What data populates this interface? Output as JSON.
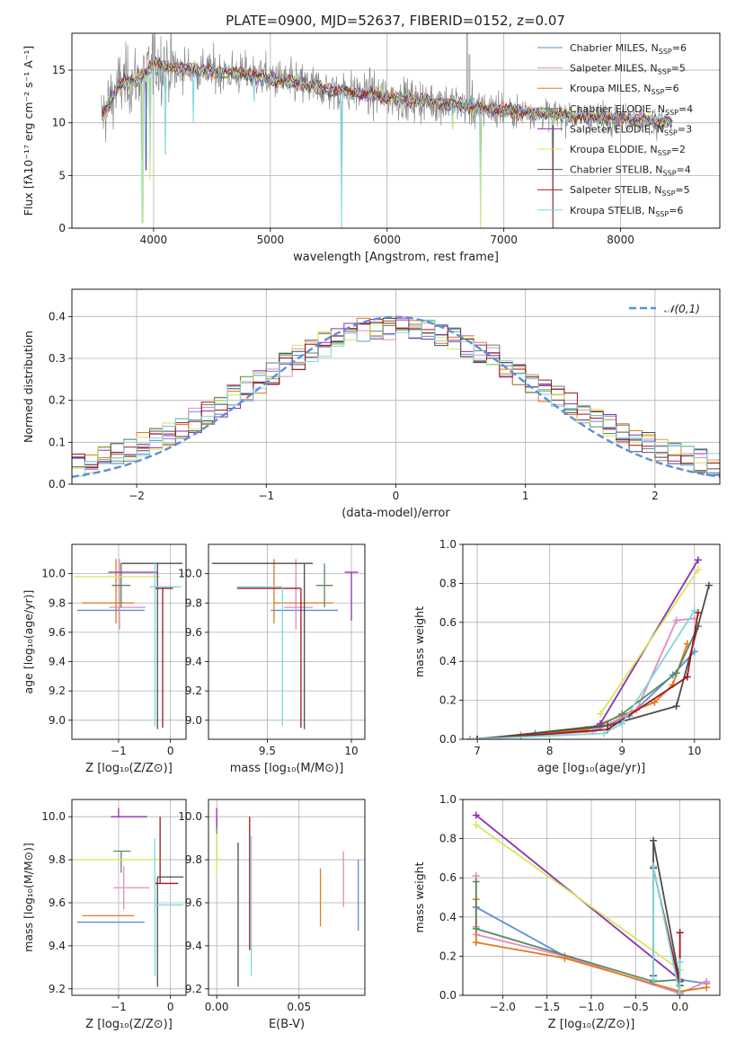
{
  "figure": {
    "title": "PLATE=0900, MJD=52637, FIBERID=0152, z=0.07"
  },
  "colors": {
    "Chabrier MILES": "#5b8fd9",
    "Salpeter MILES": "#e58ac0",
    "Kroupa MILES": "#e07b1e",
    "Chabrier ELODIE": "#5a8a60",
    "Salpeter ELODIE": "#8e2fb0",
    "Kroupa ELODIE": "#d4e85a",
    "Chabrier STELIB": "#4d4d4d",
    "Salpeter STELIB": "#a01818",
    "Kroupa STELIB": "#7fd6dd",
    "data": "#8a8a8a",
    "gauss": "#5b8fd9"
  },
  "chart_data": [
    {
      "id": "spectrum",
      "type": "line",
      "xlabel": "wavelength [Angstrom, rest frame]",
      "ylabel": "Flux [fλ10⁻¹⁷ erg cm⁻² s⁻¹ A⁻¹]",
      "xlim": [
        3300,
        8850
      ],
      "ylim": [
        0,
        18.5
      ],
      "xticks": [
        4000,
        5000,
        6000,
        7000,
        8000
      ],
      "yticks": [
        0,
        5,
        10,
        15
      ],
      "legend_position": "top-right",
      "legend": [
        "Chabrier MILES, NSSP=6",
        "Salpeter MILES, NSSP=5",
        "Kroupa MILES, NSSP=6",
        "Chabrier ELODIE, NSSP=4",
        "Salpeter ELODIE, NSSP=3",
        "Kroupa ELODIE, NSSP=2",
        "Chabrier STELIB, NSSP=4",
        "Salpeter STELIB, NSSP=5",
        "Kroupa STELIB, NSSP=6"
      ],
      "continuum": [
        [
          3550,
          10.5
        ],
        [
          3700,
          13.5
        ],
        [
          3900,
          14.5
        ],
        [
          4000,
          15.5
        ],
        [
          4200,
          15.2
        ],
        [
          4400,
          15.0
        ],
        [
          4600,
          14.8
        ],
        [
          4800,
          14.6
        ],
        [
          5000,
          14.2
        ],
        [
          5200,
          13.8
        ],
        [
          5400,
          13.4
        ],
        [
          5600,
          13.0
        ],
        [
          5800,
          12.8
        ],
        [
          6000,
          12.5
        ],
        [
          6200,
          12.2
        ],
        [
          6400,
          12.0
        ],
        [
          6600,
          11.7
        ],
        [
          6800,
          11.4
        ],
        [
          7000,
          11.2
        ],
        [
          7200,
          11.0
        ],
        [
          7400,
          10.8
        ],
        [
          7600,
          10.6
        ],
        [
          7800,
          10.5
        ],
        [
          8000,
          10.5
        ],
        [
          8200,
          10.3
        ],
        [
          8450,
          10.0
        ]
      ],
      "deep_lines": [
        [
          3905,
          0.5
        ],
        [
          3935,
          5.5
        ],
        [
          3970,
          4.5
        ],
        [
          4102,
          7
        ],
        [
          4340,
          10
        ],
        [
          4862,
          12
        ],
        [
          5610,
          0
        ],
        [
          6563,
          9.5
        ],
        [
          6800,
          0
        ],
        [
          7420,
          0
        ],
        [
          8500,
          9.0
        ]
      ],
      "spikes": [
        [
          4000,
          18.3
        ],
        [
          4090,
          17.2
        ],
        [
          6685,
          18.5
        ],
        [
          6705,
          16.5
        ]
      ]
    },
    {
      "id": "residuals",
      "type": "histogram",
      "xlabel": "(data-model)/error",
      "ylabel": "Normed distribution",
      "xlim": [
        -2.5,
        2.5
      ],
      "ylim": [
        0,
        0.465
      ],
      "xticks": [
        -2,
        -1,
        0,
        1,
        2
      ],
      "yticks": [
        0.0,
        0.1,
        0.2,
        0.3,
        0.4
      ],
      "legend_position": "top-right",
      "legend": [
        "𝒩(0,1)"
      ],
      "bins": 50,
      "gauss": {
        "mu": 0,
        "sigma": 1
      }
    },
    {
      "id": "age-vs-Z",
      "type": "errorbar",
      "xlabel": "Z [log₁₀(Z/Z⊙)]",
      "ylabel": "age  [log₁₀(age/yr)]",
      "xlim": [
        -1.9,
        0.3
      ],
      "ylim": [
        8.87,
        10.2
      ],
      "xticks": [
        -1,
        0
      ],
      "yticks": [
        9.0,
        9.2,
        9.4,
        9.6,
        9.8,
        10.0
      ],
      "points": [
        {
          "s": "Chabrier MILES",
          "x": -1.05,
          "y": 9.75,
          "xl": 0.75,
          "xh": 0.55,
          "yl": 0.0,
          "yh": 0.0
        },
        {
          "s": "Salpeter MILES",
          "x": -0.98,
          "y": 9.77,
          "xl": 0.2,
          "xh": 0.5,
          "yl": 0.15,
          "yh": 0.33
        },
        {
          "s": "Kroupa MILES",
          "x": -1.05,
          "y": 9.8,
          "xl": 0.65,
          "xh": 0.35,
          "yl": 0.14,
          "yh": 0.3
        },
        {
          "s": "Chabrier ELODIE",
          "x": -0.95,
          "y": 9.92,
          "xl": 0.18,
          "xh": 0.18,
          "yl": 0.15,
          "yh": 0.15
        },
        {
          "s": "Salpeter ELODIE",
          "x": -0.85,
          "y": 10.01,
          "xl": 0.35,
          "xh": 0.6,
          "yl": 0.0,
          "yh": 0.0
        },
        {
          "s": "Kroupa ELODIE",
          "x": -1.0,
          "y": 9.98,
          "xl": 0.85,
          "xh": 0.8,
          "yl": 0.0,
          "yh": 0.0
        },
        {
          "s": "Chabrier STELIB",
          "x": -0.25,
          "y": 10.07,
          "xl": 0.7,
          "xh": 0.48,
          "yl": 1.13,
          "yh": 0.0
        },
        {
          "s": "Salpeter STELIB",
          "x": -0.15,
          "y": 9.9,
          "xl": 0.15,
          "xh": 0.2,
          "yl": 0.95,
          "yh": 0.0
        },
        {
          "s": "Kroupa STELIB",
          "x": -0.3,
          "y": 9.91,
          "xl": 0.1,
          "xh": 0.5,
          "yl": 0.95,
          "yh": 0.17
        }
      ]
    },
    {
      "id": "age-vs-mass",
      "type": "errorbar",
      "xlabel": "mass [log₁₀(M/M⊙)]",
      "ylabel": "",
      "xlim": [
        9.15,
        10.08
      ],
      "ylim": [
        8.87,
        10.2
      ],
      "xticks": [
        9.5,
        10.0
      ],
      "yticks": [
        9.0,
        9.2,
        9.4,
        9.6,
        9.8,
        10.0
      ],
      "points": [
        {
          "s": "Chabrier MILES",
          "x": 9.52,
          "y": 9.75,
          "xl": 0.0,
          "xh": 0.4,
          "yl": 0.0,
          "yh": 0.0
        },
        {
          "s": "Salpeter MILES",
          "x": 9.67,
          "y": 9.77,
          "xl": 0.07,
          "xh": 0.1,
          "yl": 0.15,
          "yh": 0.33
        },
        {
          "s": "Kroupa MILES",
          "x": 9.54,
          "y": 9.8,
          "xl": 0.0,
          "xh": 0.35,
          "yl": 0.14,
          "yh": 0.3
        },
        {
          "s": "Chabrier ELODIE",
          "x": 9.84,
          "y": 9.92,
          "xl": 0.05,
          "xh": 0.05,
          "yl": 0.15,
          "yh": 0.15
        },
        {
          "s": "Salpeter ELODIE",
          "x": 10.0,
          "y": 10.01,
          "xl": 0.04,
          "xh": 0.04,
          "yl": 0.33,
          "yh": 0.0
        },
        {
          "s": "Kroupa ELODIE",
          "x": 9.8,
          "y": 9.98,
          "xl": 0.0,
          "xh": 0.0,
          "yl": 0.0,
          "yh": 0.0
        },
        {
          "s": "Chabrier STELIB",
          "x": 9.72,
          "y": 10.07,
          "xl": 0.55,
          "xh": 0.05,
          "yl": 1.13,
          "yh": 0.0
        },
        {
          "s": "Salpeter STELIB",
          "x": 9.7,
          "y": 9.9,
          "xl": 0.38,
          "xh": 0.0,
          "yl": 0.95,
          "yh": 0.0
        },
        {
          "s": "Kroupa STELIB",
          "x": 9.59,
          "y": 9.91,
          "xl": 0.27,
          "xh": 0.0,
          "yl": 0.95,
          "yh": 0.0
        }
      ]
    },
    {
      "id": "weight-vs-age",
      "type": "line",
      "xlabel": "age  [log₁₀(age/yr)]",
      "ylabel": "mass weight",
      "xlim": [
        6.8,
        10.35
      ],
      "ylim": [
        0,
        1.0
      ],
      "xticks": [
        7,
        8,
        9,
        10
      ],
      "yticks": [
        0.0,
        0.2,
        0.4,
        0.6,
        0.8,
        1.0
      ],
      "series": [
        {
          "name": "Chabrier MILES",
          "x": [
            6.9,
            7.8,
            8.7,
            9.1,
            9.7,
            10.0
          ],
          "y": [
            0.0,
            0.03,
            0.06,
            0.12,
            0.33,
            0.45
          ]
        },
        {
          "name": "Salpeter MILES",
          "x": [
            7.0,
            8.6,
            9.2,
            9.75,
            10.0
          ],
          "y": [
            0.0,
            0.04,
            0.15,
            0.61,
            0.62
          ]
        },
        {
          "name": "Kroupa MILES",
          "x": [
            6.9,
            7.6,
            8.5,
            9.45,
            9.7,
            9.9
          ],
          "y": [
            0.0,
            0.02,
            0.05,
            0.19,
            0.28,
            0.49
          ]
        },
        {
          "name": "Chabrier ELODIE",
          "x": [
            7.0,
            8.7,
            9.0,
            9.75,
            10.05
          ],
          "y": [
            0.0,
            0.07,
            0.13,
            0.34,
            0.58
          ]
        },
        {
          "name": "Salpeter ELODIE",
          "x": [
            8.7,
            10.05
          ],
          "y": [
            0.08,
            0.92
          ]
        },
        {
          "name": "Kroupa ELODIE",
          "x": [
            8.7,
            10.05
          ],
          "y": [
            0.13,
            0.87
          ]
        },
        {
          "name": "Chabrier STELIB",
          "x": [
            7.0,
            8.8,
            9.75,
            10.2
          ],
          "y": [
            0.0,
            0.07,
            0.17,
            0.79
          ]
        },
        {
          "name": "Salpeter STELIB",
          "x": [
            7.0,
            8.8,
            9.9,
            10.05
          ],
          "y": [
            0.0,
            0.05,
            0.32,
            0.65
          ]
        },
        {
          "name": "Kroupa STELIB",
          "x": [
            6.9,
            8.75,
            9.0,
            10.0
          ],
          "y": [
            0.0,
            0.03,
            0.08,
            0.66
          ]
        }
      ]
    },
    {
      "id": "mass-vs-Z",
      "type": "errorbar",
      "xlabel": "Z [log₁₀(Z/Z⊙)]",
      "ylabel": "mass [log₁₀(M/M⊙)]",
      "xlim": [
        -1.9,
        0.3
      ],
      "ylim": [
        9.17,
        10.08
      ],
      "xticks": [
        -1,
        0
      ],
      "yticks": [
        9.2,
        9.4,
        9.6,
        9.8,
        10.0
      ],
      "points": [
        {
          "s": "Chabrier MILES",
          "x": -1.05,
          "y": 9.51,
          "xl": 0.75,
          "xh": 0.55,
          "yl": 0.0,
          "yh": 0.0
        },
        {
          "s": "Salpeter MILES",
          "x": -0.9,
          "y": 9.67,
          "xl": 0.2,
          "xh": 0.5,
          "yl": 0.1,
          "yh": 0.1
        },
        {
          "s": "Kroupa MILES",
          "x": -1.05,
          "y": 9.54,
          "xl": 0.65,
          "xh": 0.35,
          "yl": 0.0,
          "yh": 0.0
        },
        {
          "s": "Chabrier ELODIE",
          "x": -0.95,
          "y": 9.84,
          "xl": 0.15,
          "xh": 0.18,
          "yl": 0.1,
          "yh": 0.0
        },
        {
          "s": "Salpeter ELODIE",
          "x": -1.0,
          "y": 10.0,
          "xl": 0.15,
          "xh": 0.55,
          "yl": 0.0,
          "yh": 0.04
        },
        {
          "s": "Kroupa ELODIE",
          "x": -1.0,
          "y": 9.8,
          "xl": 0.85,
          "xh": 0.8,
          "yl": 0.0,
          "yh": 0.0
        },
        {
          "s": "Chabrier STELIB",
          "x": -0.25,
          "y": 9.72,
          "xl": 0.0,
          "xh": 0.5,
          "yl": 0.51,
          "yh": 0.0
        },
        {
          "s": "Salpeter STELIB",
          "x": -0.2,
          "y": 9.69,
          "xl": 0.1,
          "xh": 0.35,
          "yl": 0.0,
          "yh": 0.31
        },
        {
          "s": "Kroupa STELIB",
          "x": -0.3,
          "y": 9.59,
          "xl": 0.0,
          "xh": 0.55,
          "yl": 0.33,
          "yh": 0.31
        }
      ]
    },
    {
      "id": "mass-vs-ebv",
      "type": "errorbar",
      "xlabel": "E(B-V)",
      "ylabel": "",
      "xlim": [
        -0.005,
        0.09
      ],
      "ylim": [
        9.17,
        10.08
      ],
      "xticks": [
        0.0,
        0.05
      ],
      "xticklabels": [
        "0.00",
        "0.05"
      ],
      "yticks": [
        9.2,
        9.4,
        9.6,
        9.8,
        10.0
      ],
      "points": [
        {
          "s": "Chabrier MILES",
          "x": 0.086,
          "y": 9.65,
          "xl": 0,
          "xh": 0,
          "yl": 0.18,
          "yh": 0.15
        },
        {
          "s": "Salpeter MILES",
          "x": 0.077,
          "y": 9.71,
          "xl": 0,
          "xh": 0,
          "yl": 0.13,
          "yh": 0.13
        },
        {
          "s": "Kroupa MILES",
          "x": 0.063,
          "y": 9.62,
          "xl": 0,
          "xh": 0,
          "yl": 0.13,
          "yh": 0.14
        },
        {
          "s": "Chabrier ELODIE",
          "x": 0.0,
          "y": 9.9,
          "xl": 0,
          "xh": 0,
          "yl": 0.1,
          "yh": 0.1
        },
        {
          "s": "Salpeter ELODIE",
          "x": 0.0,
          "y": 10.0,
          "xl": 0,
          "xh": 0,
          "yl": 0.05,
          "yh": 0.04
        },
        {
          "s": "Kroupa ELODIE",
          "x": 0.0,
          "y": 9.82,
          "xl": 0,
          "xh": 0,
          "yl": 0.09,
          "yh": 0.1
        },
        {
          "s": "Chabrier STELIB",
          "x": 0.013,
          "y": 9.55,
          "xl": 0,
          "xh": 0,
          "yl": 0.34,
          "yh": 0.33
        },
        {
          "s": "Salpeter STELIB",
          "x": 0.02,
          "y": 9.69,
          "xl": 0,
          "xh": 0,
          "yl": 0.31,
          "yh": 0.31
        },
        {
          "s": "Kroupa STELIB",
          "x": 0.021,
          "y": 9.58,
          "xl": 0,
          "xh": 0,
          "yl": 0.32,
          "yh": 0.33
        }
      ]
    },
    {
      "id": "weight-vs-Z",
      "type": "line",
      "xlabel": "Z [log₁₀(Z/Z⊙)]",
      "ylabel": "mass weight",
      "xlim": [
        -2.45,
        0.45
      ],
      "ylim": [
        0,
        1.0
      ],
      "xticks": [
        -2.0,
        -1.5,
        -1.0,
        -0.5,
        0.0
      ],
      "xticklabels": [
        "−2.0",
        "−1.5",
        "−1.0",
        "−0.5",
        "0.0"
      ],
      "yticks": [
        0.0,
        0.2,
        0.4,
        0.6,
        0.8,
        1.0
      ],
      "series": [
        {
          "name": "Chabrier MILES",
          "x": [
            -2.3,
            -1.3,
            0.0,
            0.0,
            0.3
          ],
          "y": [
            0.45,
            0.2,
            0.01,
            0.08,
            0.06
          ]
        },
        {
          "name": "Salpeter MILES",
          "x": [
            -2.3,
            -2.3,
            -2.3,
            -1.3,
            0.0,
            0.3
          ],
          "y": [
            0.61,
            0.35,
            0.31,
            0.2,
            0.01,
            0.07
          ]
        },
        {
          "name": "Kroupa MILES",
          "x": [
            -2.3,
            -2.3,
            -1.3,
            0.0,
            0.3
          ],
          "y": [
            0.49,
            0.27,
            0.19,
            0.02,
            0.04
          ]
        },
        {
          "name": "Chabrier ELODIE",
          "x": [
            -2.3,
            -2.3,
            -0.3,
            0.0
          ],
          "y": [
            0.58,
            0.34,
            0.07,
            0.08
          ]
        },
        {
          "name": "Salpeter ELODIE",
          "x": [
            -2.3,
            0.0
          ],
          "y": [
            0.92,
            0.08
          ]
        },
        {
          "name": "Kroupa ELODIE",
          "x": [
            -2.3,
            0.0
          ],
          "y": [
            0.87,
            0.13
          ]
        },
        {
          "name": "Chabrier STELIB",
          "x": [
            -0.3,
            -0.3,
            0.0,
            0.0
          ],
          "y": [
            0.1,
            0.79,
            0.07,
            0.0
          ]
        },
        {
          "name": "Salpeter STELIB",
          "x": [
            -0.3,
            0.0,
            0.0
          ],
          "y": [
            0.65,
            0.05,
            0.32
          ]
        },
        {
          "name": "Kroupa STELIB",
          "x": [
            -0.3,
            -0.3,
            0.0,
            0.0
          ],
          "y": [
            0.08,
            0.66,
            0.0,
            0.17
          ]
        }
      ]
    }
  ]
}
